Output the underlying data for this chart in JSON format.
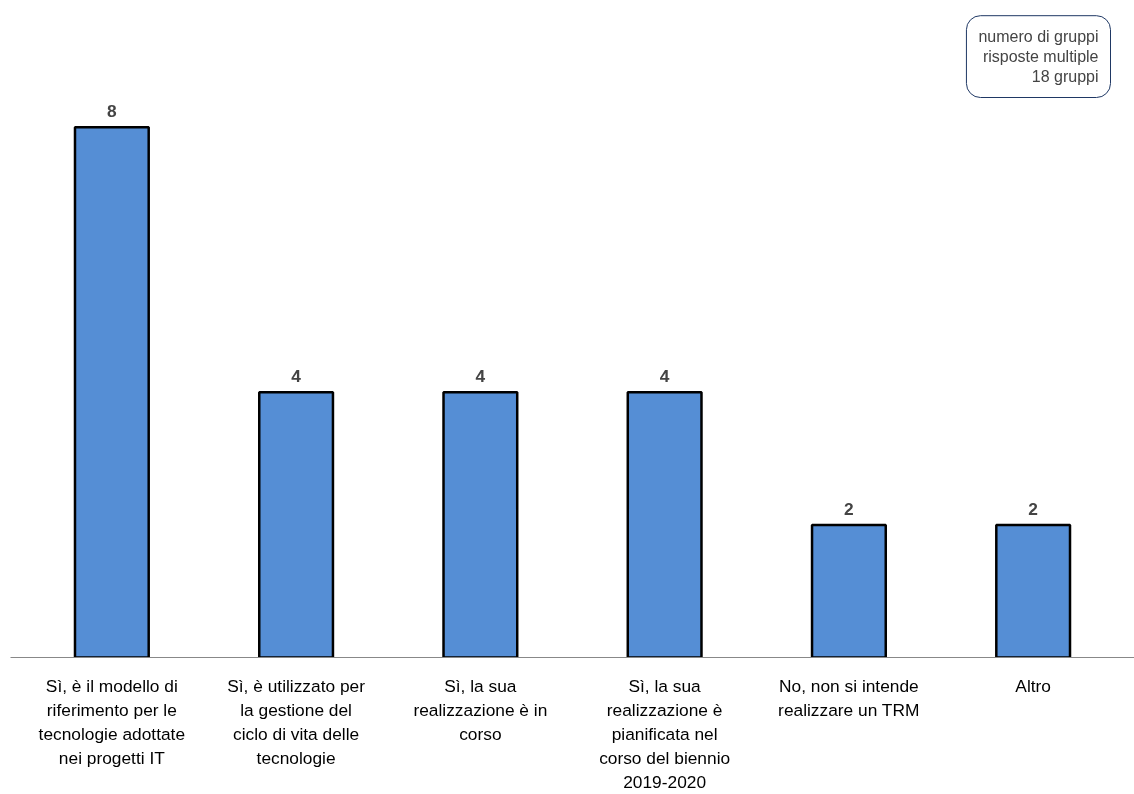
{
  "chart_data": {
    "type": "bar",
    "categories": [
      "Sì, è il modello di riferimento per le tecnologie adottate nei progetti IT",
      "Sì, è utilizzato per la gestione del ciclo di vita delle tecnologie",
      "Sì, la sua realizzazione è in corso",
      "Sì, la sua realizzazione è pianificata nel corso del biennio 2019-2020",
      "No, non si intende realizzare un TRM",
      "Altro"
    ],
    "values": [
      8,
      4,
      4,
      4,
      2,
      2
    ],
    "color": "#558ed5",
    "data_labels": true,
    "grid": false,
    "annotations": [
      "numero di gruppi\nrisposte multiple\n18 gruppi"
    ]
  }
}
